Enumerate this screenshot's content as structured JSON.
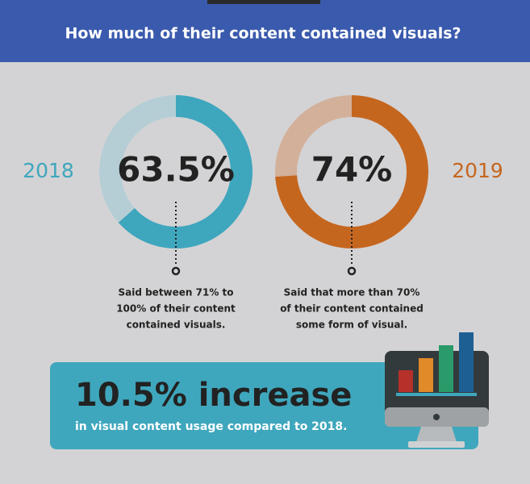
{
  "header": {
    "title": "How much of their content contained visuals?"
  },
  "chart_data": [
    {
      "type": "donut",
      "label": "2018",
      "values": [
        63.5,
        36.5
      ],
      "value_labels": [
        "63.5%",
        null
      ],
      "colors": [
        "#3ea6bd",
        "#b5ced5"
      ],
      "label_color": "#3ea6bd",
      "caption": [
        "Said between 71% to",
        "100% of their content",
        "contained visuals."
      ]
    },
    {
      "type": "donut",
      "label": "2019",
      "values": [
        74,
        26
      ],
      "value_labels": [
        "74%",
        null
      ],
      "colors": [
        "#c5661f",
        "#d3b09a"
      ],
      "label_color": "#c5661f",
      "caption": [
        "Said that more than 70%",
        "of their content contained",
        "some form of visual."
      ]
    }
  ],
  "callout": {
    "headline": "10.5% increase",
    "text": "in visual content usage compared to 2018."
  }
}
